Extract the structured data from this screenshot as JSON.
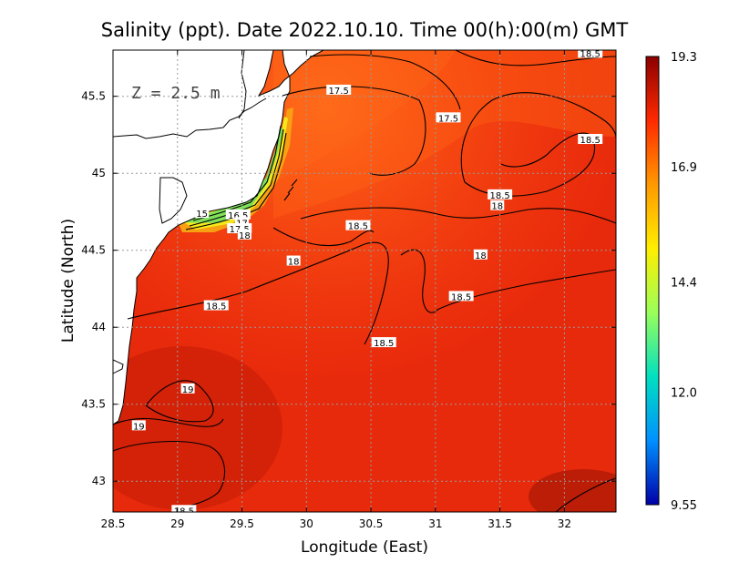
{
  "title": "Salinity (ppt). Date 2022.10.10. Time 00(h):00(m) GMT",
  "depth_label": "Z = 2.5 m",
  "chart_data": {
    "type": "heatmap",
    "variable": "Salinity (ppt)",
    "xlabel": "Longitude (East)",
    "ylabel": "Latitude (North)",
    "xlim": [
      28.5,
      32.4
    ],
    "ylim": [
      42.8,
      45.8
    ],
    "x_ticks": [
      28.5,
      29,
      29.5,
      30,
      30.5,
      31,
      31.5,
      32
    ],
    "x_tick_labels": [
      "28.5",
      "29",
      "29.5",
      "30",
      "30.5",
      "31",
      "31.5",
      "32"
    ],
    "y_ticks": [
      45.5,
      45,
      44.5,
      44,
      43.5,
      43
    ],
    "y_tick_labels": [
      "45.5",
      "45",
      "44.5",
      "44",
      "43.5",
      "43"
    ],
    "grid": true,
    "colorbar": {
      "min": 9.55,
      "max": 19.3,
      "ticks": [
        19.3,
        16.9,
        14.4,
        12.0,
        9.55
      ],
      "tick_labels": [
        "19.3",
        "16.9",
        "14.4",
        "12.0",
        "9.55"
      ],
      "colors": [
        "#8b0000",
        "#ff2a00",
        "#ff9900",
        "#ffee00",
        "#9aff5a",
        "#00e0c0",
        "#0090ff",
        "#0000a8"
      ]
    },
    "contour_labels": [
      {
        "text": "17.5",
        "lon": 30.25,
        "lat": 45.54
      },
      {
        "text": "17.5",
        "lon": 31.1,
        "lat": 45.36
      },
      {
        "text": "18.5",
        "lon": 32.2,
        "lat": 45.78
      },
      {
        "text": "18.5",
        "lon": 32.2,
        "lat": 45.22
      },
      {
        "text": "18.5",
        "lon": 31.5,
        "lat": 44.86
      },
      {
        "text": "18",
        "lon": 31.48,
        "lat": 44.79
      },
      {
        "text": "18.5",
        "lon": 30.4,
        "lat": 44.66
      },
      {
        "text": "18",
        "lon": 31.35,
        "lat": 44.47
      },
      {
        "text": "18",
        "lon": 29.9,
        "lat": 44.43
      },
      {
        "text": "18.5",
        "lon": 29.3,
        "lat": 44.14
      },
      {
        "text": "18.5",
        "lon": 31.2,
        "lat": 44.2
      },
      {
        "text": "18.5",
        "lon": 30.6,
        "lat": 43.9
      },
      {
        "text": "19",
        "lon": 29.08,
        "lat": 43.6
      },
      {
        "text": "19",
        "lon": 28.7,
        "lat": 43.36
      },
      {
        "text": "18.5",
        "lon": 29.05,
        "lat": 42.81
      },
      {
        "text": "15",
        "lon": 29.19,
        "lat": 44.74
      },
      {
        "text": "16.5",
        "lon": 29.47,
        "lat": 44.73
      },
      {
        "text": "17",
        "lon": 29.5,
        "lat": 44.68
      },
      {
        "text": "17.5",
        "lon": 29.48,
        "lat": 44.64
      },
      {
        "text": "18",
        "lon": 29.52,
        "lat": 44.6
      }
    ]
  }
}
